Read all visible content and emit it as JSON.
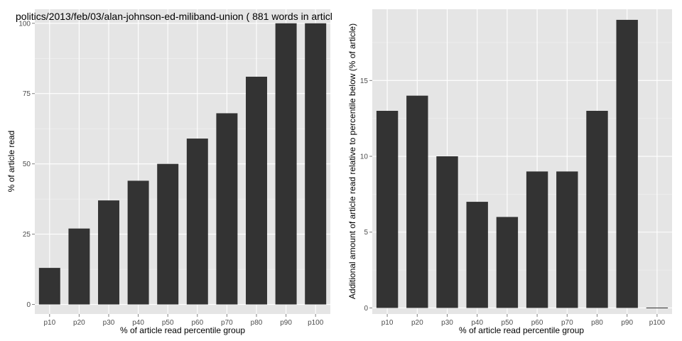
{
  "colors": {
    "panel_bg": "#e5e5e5",
    "grid": "#ffffff",
    "bar": "#333333",
    "tick_text": "#4d4d4d"
  },
  "chart_data": [
    {
      "type": "bar",
      "title": "politics/2013/feb/03/alan-johnson-ed-miliband-union ( 881 words in articl",
      "xlabel": "% of article read percentile group",
      "ylabel": "% of article read",
      "categories": [
        "p10",
        "p20",
        "p30",
        "p40",
        "p50",
        "p60",
        "p70",
        "p80",
        "p90",
        "p100"
      ],
      "values": [
        13,
        27,
        37,
        44,
        50,
        59,
        68,
        81,
        100,
        100
      ],
      "ylim": [
        -3.4,
        105
      ],
      "yticks": [
        0,
        25,
        50,
        75,
        100
      ],
      "grid": true
    },
    {
      "type": "bar",
      "title": "",
      "xlabel": "% of article read percentile group",
      "ylabel": "Additional amount of article read relative to percentile below (% of article)",
      "categories": [
        "p10",
        "p20",
        "p30",
        "p40",
        "p50",
        "p60",
        "p70",
        "p80",
        "p90",
        "p100"
      ],
      "values": [
        13,
        14,
        10,
        7,
        6,
        9,
        9,
        13,
        19,
        0
      ],
      "ylim": [
        -0.4,
        19.7
      ],
      "yticks": [
        0,
        5,
        10,
        15
      ],
      "grid": true
    }
  ]
}
